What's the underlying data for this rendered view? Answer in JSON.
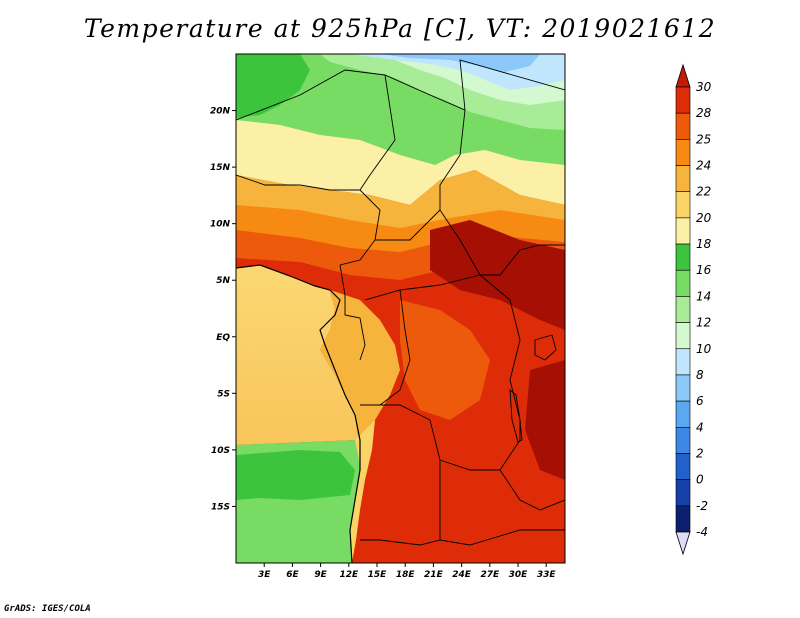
{
  "title": "Temperature at 925hPa [C], VT: 2019021612",
  "credit": "GrADS: IGES/COLA",
  "map": {
    "lat_labels": [
      "20N",
      "15N",
      "10N",
      "5N",
      "EQ",
      "5S",
      "10S",
      "15S"
    ],
    "lat_values": [
      20,
      15,
      10,
      5,
      0,
      -5,
      -10,
      -15
    ],
    "lon_labels": [
      "3E",
      "6E",
      "9E",
      "12E",
      "15E",
      "18E",
      "21E",
      "24E",
      "27E",
      "30E",
      "33E"
    ],
    "lon_values": [
      3,
      6,
      9,
      12,
      15,
      18,
      21,
      24,
      27,
      30,
      33
    ],
    "lon_range": [
      0,
      35
    ],
    "lat_range": [
      -20,
      25
    ]
  },
  "colorbar": {
    "labels": [
      "30",
      "28",
      "25",
      "24",
      "22",
      "20",
      "18",
      "16",
      "14",
      "12",
      "10",
      "8",
      "6",
      "4",
      "2",
      "0",
      "-2",
      "-4"
    ],
    "colors": [
      "#a50f04",
      "#de2c08",
      "#ee5a0c",
      "#f78a12",
      "#f7b43c",
      "#fad466",
      "#fcf0a6",
      "#3cc43c",
      "#78dc64",
      "#a8ec98",
      "#d4f8d0",
      "#bfe6fc",
      "#8cc8fa",
      "#5aa8f0",
      "#3c88e4",
      "#2260cc",
      "#1640a8",
      "#0c2070",
      "#000050"
    ],
    "arrow_top_color": "#c41a06",
    "arrow_bottom_color": "#dcdcf8"
  }
}
